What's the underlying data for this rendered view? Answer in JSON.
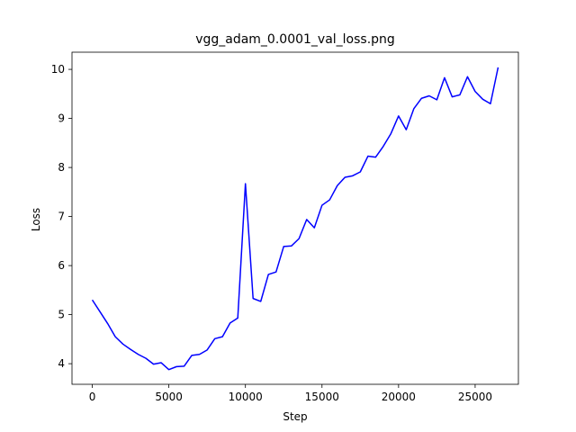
{
  "chart_data": {
    "type": "line",
    "title": "vgg_adam_0.0001_val_loss.png",
    "xlabel": "Step",
    "ylabel": "Loss",
    "xlim": [
      -1325,
      27825
    ],
    "ylim": [
      3.58,
      10.35
    ],
    "xticks": [
      0,
      5000,
      10000,
      15000,
      20000,
      25000
    ],
    "yticks": [
      4,
      5,
      6,
      7,
      8,
      9,
      10
    ],
    "xtick_labels": [
      "0",
      "5000",
      "10000",
      "15000",
      "20000",
      "25000"
    ],
    "ytick_labels": [
      "4",
      "5",
      "6",
      "7",
      "8",
      "9",
      "10"
    ],
    "grid": false,
    "line_color": "#0000ff",
    "series": [
      {
        "x": [
          0,
          500,
          1000,
          1500,
          2000,
          2500,
          3000,
          3500,
          4000,
          4500,
          5000,
          5500,
          6000,
          6500,
          7000,
          7500,
          8000,
          8500,
          9000,
          9500,
          10000,
          10500,
          11000,
          11500,
          12000,
          12500,
          13000,
          13500,
          14000,
          14500,
          15000,
          15500,
          16000,
          16500,
          17000,
          17500,
          18000,
          18500,
          19000,
          19500,
          20000,
          20500,
          21000,
          21500,
          22000,
          22500,
          23000,
          23500,
          24000,
          24500,
          25000,
          25500,
          26000,
          26500
        ],
        "values": [
          5.3,
          5.06,
          4.82,
          4.55,
          4.4,
          4.29,
          4.19,
          4.11,
          3.99,
          4.02,
          3.88,
          3.94,
          3.95,
          4.17,
          4.19,
          4.28,
          4.51,
          4.55,
          4.83,
          4.93,
          7.67,
          5.33,
          5.27,
          5.82,
          5.87,
          6.39,
          6.4,
          6.55,
          6.94,
          6.77,
          7.23,
          7.34,
          7.63,
          7.8,
          7.83,
          7.91,
          8.23,
          8.21,
          8.43,
          8.69,
          9.05,
          8.77,
          9.2,
          9.41,
          9.46,
          9.38,
          9.83,
          9.44,
          9.48,
          9.85,
          9.55,
          9.39,
          9.3,
          10.04
        ]
      }
    ]
  }
}
